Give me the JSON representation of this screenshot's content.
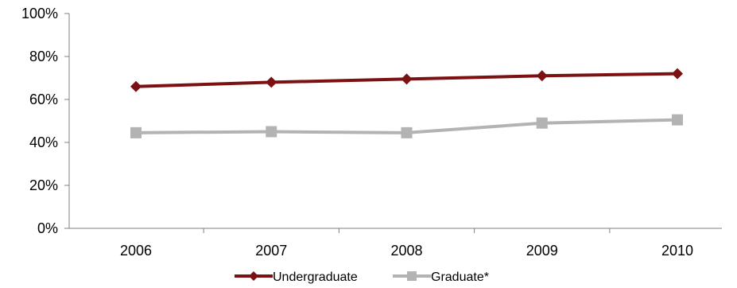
{
  "chart_data": {
    "type": "line",
    "categories": [
      "2006",
      "2007",
      "2008",
      "2009",
      "2010"
    ],
    "series": [
      {
        "name": "Undergraduate",
        "values": [
          66,
          68,
          69.5,
          71,
          72
        ],
        "color": "#7b1113",
        "marker": "diamond"
      },
      {
        "name": "Graduate*",
        "values": [
          44.5,
          45,
          44.5,
          49,
          50.5
        ],
        "color": "#b3b3b3",
        "marker": "square"
      }
    ],
    "ylim": [
      0,
      100
    ],
    "yticks": [
      0,
      20,
      40,
      60,
      80,
      100
    ],
    "ytick_labels": [
      "0%",
      "20%",
      "40%",
      "60%",
      "80%",
      "100%"
    ],
    "grid": false,
    "legend_position": "bottom"
  }
}
